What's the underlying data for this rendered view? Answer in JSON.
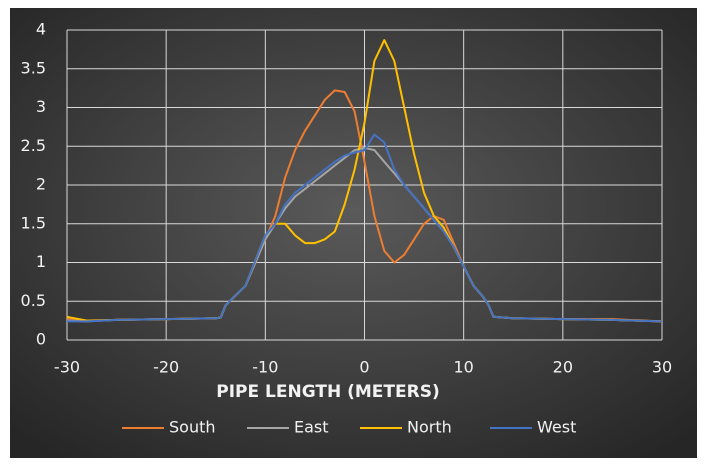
{
  "chart_data": {
    "type": "line",
    "x_label": "PIPE LENGTH (METERS)",
    "x": [
      -30,
      -28,
      -25,
      -20,
      -15,
      -14.5,
      -14,
      -12,
      -10,
      -9,
      -8,
      -7,
      -6,
      -5,
      -4,
      -3,
      -2,
      -1,
      0,
      1,
      2,
      3,
      4,
      5,
      6,
      7,
      8,
      9,
      10,
      11,
      12,
      12.5,
      13,
      15,
      20,
      25,
      30
    ],
    "series": [
      {
        "name": "South",
        "color": "#ed7d31",
        "values": [
          0.28,
          0.25,
          0.26,
          0.27,
          0.28,
          0.29,
          0.45,
          0.7,
          1.3,
          1.6,
          2.1,
          2.45,
          2.7,
          2.9,
          3.1,
          3.22,
          3.2,
          2.95,
          2.3,
          1.6,
          1.15,
          1.0,
          1.1,
          1.3,
          1.5,
          1.6,
          1.55,
          1.25,
          0.95,
          0.7,
          0.55,
          0.45,
          0.3,
          0.28,
          0.27,
          0.27,
          0.24
        ]
      },
      {
        "name": "East",
        "color": "#a5a5a5",
        "values": [
          0.25,
          0.24,
          0.26,
          0.27,
          0.28,
          0.29,
          0.45,
          0.7,
          1.3,
          1.5,
          1.7,
          1.85,
          1.95,
          2.05,
          2.15,
          2.25,
          2.35,
          2.45,
          2.48,
          2.45,
          2.3,
          2.15,
          2.0,
          1.85,
          1.7,
          1.55,
          1.4,
          1.2,
          0.95,
          0.7,
          0.55,
          0.45,
          0.3,
          0.28,
          0.27,
          0.26,
          0.24
        ]
      },
      {
        "name": "North",
        "color": "#ffc000",
        "values": [
          0.3,
          0.25,
          0.26,
          0.27,
          0.28,
          0.29,
          0.45,
          0.7,
          1.35,
          1.5,
          1.5,
          1.35,
          1.25,
          1.25,
          1.3,
          1.4,
          1.75,
          2.2,
          2.8,
          3.6,
          3.87,
          3.6,
          3.0,
          2.4,
          1.9,
          1.6,
          1.45,
          1.2,
          0.95,
          0.7,
          0.55,
          0.45,
          0.3,
          0.28,
          0.27,
          0.26,
          0.24
        ]
      },
      {
        "name": "West",
        "color": "#4472c4",
        "values": [
          0.24,
          0.24,
          0.26,
          0.27,
          0.28,
          0.29,
          0.45,
          0.7,
          1.35,
          1.5,
          1.75,
          1.9,
          2.0,
          2.1,
          2.2,
          2.3,
          2.38,
          2.42,
          2.45,
          2.65,
          2.55,
          2.2,
          2.0,
          1.85,
          1.7,
          1.55,
          1.4,
          1.2,
          0.95,
          0.7,
          0.55,
          0.45,
          0.3,
          0.28,
          0.27,
          0.26,
          0.24
        ]
      }
    ],
    "xlim": [
      -30,
      30
    ],
    "xticks": [
      -30,
      -20,
      -10,
      0,
      10,
      20,
      30
    ],
    "ylim": [
      0,
      4
    ],
    "yticks": [
      0,
      0.5,
      1,
      1.5,
      2,
      2.5,
      3,
      3.5,
      4
    ],
    "grid": true,
    "legend": "bottom"
  }
}
